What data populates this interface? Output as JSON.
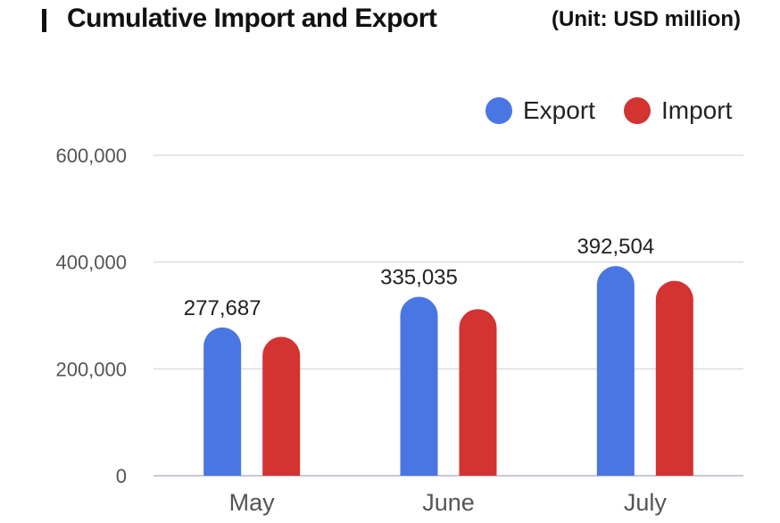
{
  "title": "Cumulative Import and Export",
  "unit": "(Unit: USD million)",
  "colors": {
    "export": "#4a76e3",
    "import": "#d33331",
    "grid": "#dddddd",
    "axis": "#c8c8d8"
  },
  "chart_data": {
    "type": "bar",
    "categories": [
      "May",
      "June",
      "July"
    ],
    "series": [
      {
        "name": "Export",
        "values": [
          277687,
          335035,
          392504
        ],
        "data_labels": [
          "277,687",
          "335,035",
          "392,504"
        ]
      },
      {
        "name": "Import",
        "values": [
          260000,
          312000,
          365000
        ]
      }
    ],
    "ylim": [
      0,
      600000
    ],
    "yticks": [
      0,
      200000,
      400000,
      600000
    ],
    "ytick_labels": [
      "0",
      "200,000",
      "400,000",
      "600,000"
    ],
    "legend": "top-right",
    "grid": true
  }
}
